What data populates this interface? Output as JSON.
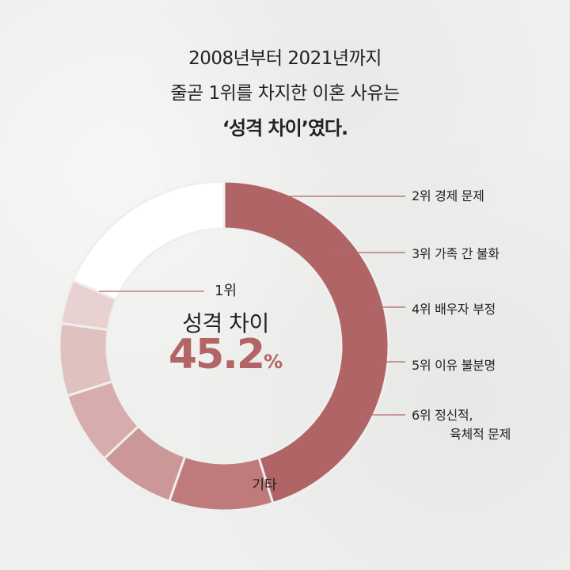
{
  "headline": {
    "line1": "2008년부터 2021년까지",
    "line2": "줄곧 1위를 차지한 이혼 사유는",
    "line3": "‘성격 차이’였다."
  },
  "center": {
    "rank": "1위",
    "name": "성격 차이",
    "value": "45.2",
    "unit": "%"
  },
  "chart_data": {
    "type": "pie",
    "title": "",
    "categories": [
      "성격 차이",
      "경제 문제",
      "가족 간 불화",
      "배우자 부정",
      "이유 불분명",
      "정신적, 육체적 문제",
      "기타"
    ],
    "values": [
      45.2,
      10.2,
      7.6,
      7.1,
      7.1,
      4.3,
      18.5
    ],
    "colors": [
      "#b06466",
      "#bf7b7c",
      "#cc9797",
      "#d6adac",
      "#dfc1c0",
      "#e7d2d1",
      "#ffffff"
    ],
    "labels": [
      {
        "rank": "1위",
        "text": "성격 차이"
      },
      {
        "rank": "2위",
        "text": "경제 문제"
      },
      {
        "rank": "3위",
        "text": "가족 간 불화"
      },
      {
        "rank": "4위",
        "text": "배우자 부정"
      },
      {
        "rank": "5위",
        "text": "이유 불분명"
      },
      {
        "rank": "6위",
        "text": "정신적, 육체적 문제"
      },
      {
        "rank": "",
        "text": "기타"
      }
    ],
    "legend_placement": "right",
    "grid": false
  },
  "side_labels": {
    "l2": "2위 경제 문제",
    "l3": "3위 가족 간 불화",
    "l4": "4위 배우자 부정",
    "l5": "5위 이유 불분명",
    "l6a": "6위 정신적,",
    "l6b": "육체적 문제"
  },
  "other_label": "기타",
  "colors": {
    "accent": "#b26466",
    "background": "#efefed",
    "leader_line": "#b26466"
  }
}
